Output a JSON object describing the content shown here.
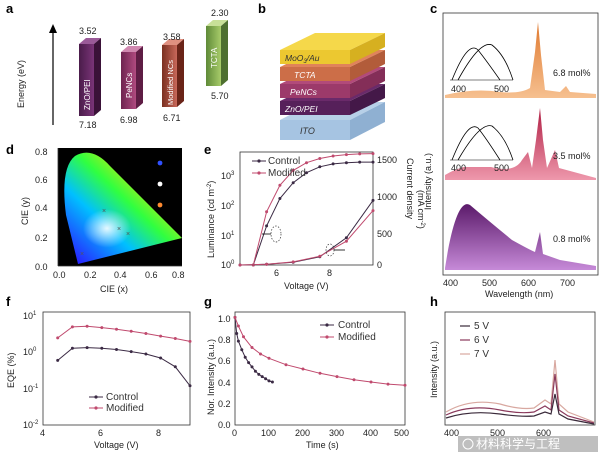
{
  "figure": {
    "panels": [
      "a",
      "b",
      "c",
      "d",
      "e",
      "f",
      "g",
      "h"
    ],
    "watermark": "材料科学与工程",
    "colors": {
      "control": "#3b2a44",
      "modified": "#c04a6e",
      "zno": "#6b2a66",
      "pe": "#9a3a6a",
      "mod": "#b5503f",
      "tcta": "#8ab158"
    }
  },
  "panel_a": {
    "ylabel": "Energy (eV)",
    "layers": [
      {
        "name": "ZnO/PEI",
        "top": "3.52",
        "bottom": "7.18"
      },
      {
        "name": "PeNCs",
        "top": "3.86",
        "bottom": "6.98"
      },
      {
        "name": "Modified NCs",
        "top": "3.58",
        "bottom": "6.71"
      },
      {
        "name": "TCTA",
        "top": "2.30",
        "bottom": "5.70"
      }
    ]
  },
  "panel_b": {
    "layers": [
      "MoO",
      "3",
      "/Au",
      "TCTA",
      "PeNCs",
      "ZnO/PEI",
      "ITO"
    ]
  },
  "panel_c": {
    "ylabel": "Intensity (a.u.)",
    "xlabel": "Wavelength (nm)",
    "xticks": [
      "400",
      "500",
      "600",
      "700"
    ],
    "inset_ticks": [
      "400",
      "500"
    ],
    "labels": [
      "6.8 mol%",
      "3.5 mol%",
      "0.8 mol%"
    ]
  },
  "panel_d": {
    "xlabel": "CIE (x)",
    "ylabel": "CIE (y)",
    "xticks": [
      "0.0",
      "0.2",
      "0.4",
      "0.6",
      "0.8"
    ],
    "yticks": [
      "0.0",
      "0.2",
      "0.4",
      "0.6",
      "0.8"
    ]
  },
  "panel_e": {
    "ylabel_left": "Luminance (cd m",
    "ylabel_left_sup": "-2",
    "ylabel_left_tail": ")",
    "ylabel_right": "Current density",
    "ylabel_right2": "(mA cm",
    "ylabel_right2_sup": "-2",
    "ylabel_right2_tail": ")",
    "xlabel": "Voltage (V)",
    "xticks": [
      "6",
      "8"
    ],
    "yticks_left_base": [
      "10",
      "10",
      "10",
      "10"
    ],
    "yticks_left_exp": [
      "0",
      "1",
      "2",
      "3"
    ],
    "yticks_right": [
      "0",
      "500",
      "1000",
      "1500"
    ],
    "legend": [
      "Control",
      "Modified"
    ]
  },
  "panel_f": {
    "ylabel": "EQE (%)",
    "xlabel": "Voltage (V)",
    "xticks": [
      "4",
      "6",
      "8"
    ],
    "yticks_base": [
      "10",
      "10",
      "10",
      "10"
    ],
    "yticks_exp": [
      "-2",
      "-1",
      "0",
      "1"
    ],
    "legend": [
      "Control",
      "Modified"
    ]
  },
  "panel_g": {
    "ylabel": "Nor. Intensity (a.u.)",
    "xlabel": "Time (s)",
    "xticks": [
      "0",
      "100",
      "200",
      "300",
      "400",
      "500"
    ],
    "yticks": [
      "0.0",
      "0.2",
      "0.4",
      "0.6",
      "0.8",
      "1.0"
    ],
    "legend": [
      "Control",
      "Modified"
    ]
  },
  "panel_h": {
    "ylabel": "Intensity (a.u.)",
    "xlabel": "Wavelength (nm)",
    "xticks": [
      "400",
      "500",
      "600"
    ],
    "legend": [
      "5 V",
      "6 V",
      "7 V"
    ]
  },
  "chart_data": [
    {
      "type": "line",
      "panel": "e",
      "title": "",
      "xlabel": "Voltage (V)",
      "xlim": [
        4,
        9
      ],
      "series": [
        {
          "name": "Control luminance",
          "x": [
            4.5,
            5,
            5.5,
            6,
            6.5,
            7,
            7.5,
            8,
            8.5,
            9
          ],
          "y": [
            1,
            15,
            100,
            300,
            600,
            900,
            1100,
            1200,
            1250,
            1250
          ]
        },
        {
          "name": "Modified luminance",
          "x": [
            4.5,
            5,
            5.5,
            6,
            6.5,
            7,
            7.5,
            8,
            8.5,
            9
          ],
          "y": [
            1,
            40,
            250,
            700,
            1200,
            1600,
            1900,
            2100,
            2200,
            2250
          ]
        },
        {
          "name": "Control current density",
          "x": [
            4,
            5,
            6,
            7,
            8,
            9
          ],
          "y": [
            0,
            10,
            40,
            120,
            400,
            950
          ]
        },
        {
          "name": "Modified current density",
          "x": [
            4,
            5,
            6,
            7,
            8,
            9
          ],
          "y": [
            0,
            10,
            45,
            130,
            350,
            800
          ]
        }
      ]
    },
    {
      "type": "line",
      "panel": "f",
      "xlabel": "Voltage (V)",
      "ylabel": "EQE (%)",
      "xlim": [
        4,
        9
      ],
      "ylim": [
        0.01,
        10
      ],
      "yscale": "log",
      "series": [
        {
          "name": "Control",
          "x": [
            4.5,
            5,
            5.5,
            6,
            6.5,
            7,
            7.5,
            8,
            8.5,
            9
          ],
          "y": [
            0.6,
            1.3,
            1.35,
            1.3,
            1.2,
            1.05,
            0.9,
            0.7,
            0.4,
            0.12
          ]
        },
        {
          "name": "Modified",
          "x": [
            4.5,
            5,
            5.5,
            6,
            6.5,
            7,
            7.5,
            8,
            8.5,
            9
          ],
          "y": [
            2.5,
            5.0,
            5.2,
            4.8,
            4.3,
            3.8,
            3.3,
            2.8,
            2.4,
            2.0
          ]
        }
      ]
    },
    {
      "type": "line",
      "panel": "g",
      "xlabel": "Time (s)",
      "ylabel": "Nor. Intensity (a.u.)",
      "xlim": [
        0,
        500
      ],
      "ylim": [
        0,
        1.05
      ],
      "series": [
        {
          "name": "Control",
          "x": [
            0,
            5,
            10,
            20,
            30,
            40,
            50,
            60,
            70,
            80,
            90,
            100,
            110
          ],
          "y": [
            1.0,
            0.85,
            0.78,
            0.7,
            0.63,
            0.58,
            0.54,
            0.5,
            0.47,
            0.45,
            0.43,
            0.41,
            0.4
          ]
        },
        {
          "name": "Modified",
          "x": [
            0,
            10,
            25,
            50,
            75,
            100,
            150,
            200,
            250,
            300,
            350,
            400,
            450,
            500
          ],
          "y": [
            1.0,
            0.92,
            0.82,
            0.72,
            0.66,
            0.62,
            0.56,
            0.52,
            0.48,
            0.45,
            0.42,
            0.4,
            0.38,
            0.37
          ]
        }
      ]
    }
  ]
}
